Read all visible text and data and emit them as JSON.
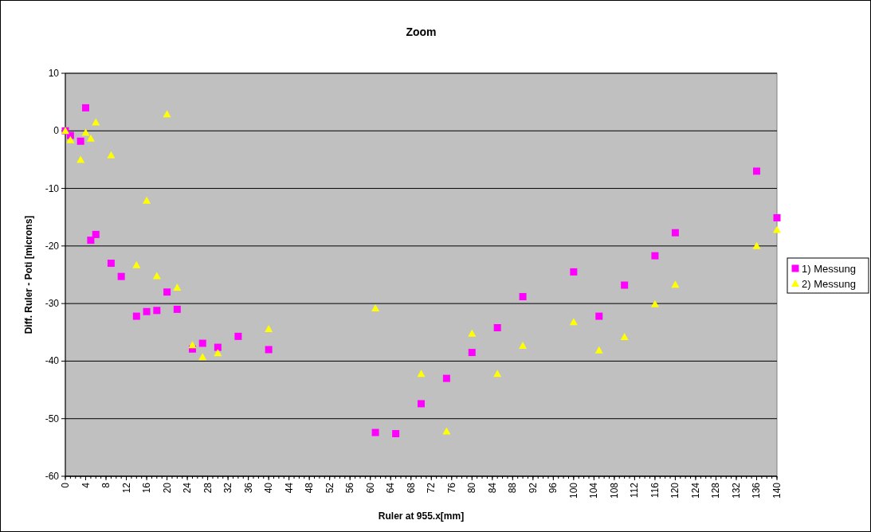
{
  "chart_data": {
    "type": "scatter",
    "title": "Zoom",
    "xlabel": "Ruler at 955.x[mm]",
    "ylabel": "Diff. Ruler - Poti [microns]",
    "xlim": [
      0,
      140
    ],
    "xticks": [
      0,
      4,
      8,
      12,
      16,
      20,
      24,
      28,
      32,
      36,
      40,
      44,
      48,
      52,
      56,
      60,
      64,
      68,
      72,
      76,
      80,
      84,
      88,
      92,
      96,
      100,
      104,
      108,
      112,
      116,
      120,
      124,
      128,
      132,
      136,
      140
    ],
    "ylim": [
      -60,
      10
    ],
    "yticks": [
      -60,
      -50,
      -40,
      -30,
      -20,
      -10,
      0,
      10
    ],
    "grid": "y",
    "legend": "right",
    "series": [
      {
        "name": "1) Messung",
        "color": "#ff00ff",
        "marker": "square",
        "x": [
          0,
          1,
          3,
          4,
          5,
          6,
          9,
          11,
          14,
          16,
          18,
          20,
          22,
          25,
          27,
          30,
          34,
          40,
          61,
          65,
          70,
          75,
          80,
          85,
          90,
          100,
          105,
          110,
          116,
          120,
          136,
          140
        ],
        "values": [
          0,
          -0.8,
          -1.8,
          4,
          -19,
          -18,
          -23,
          -25.3,
          -32.2,
          -31.4,
          -31.2,
          -28,
          -31,
          -37.9,
          -36.9,
          -37.6,
          -35.7,
          -38,
          -52.4,
          -52.6,
          -47.4,
          -43,
          -38.5,
          -34.2,
          -28.8,
          -24.5,
          -32.2,
          -26.8,
          -21.7,
          -17.7,
          -7,
          -15.1
        ]
      },
      {
        "name": "2) Messung",
        "color": "#ffff00",
        "marker": "triangle",
        "x": [
          0,
          1,
          3,
          4,
          5,
          6,
          9,
          14,
          16,
          18,
          20,
          22,
          25,
          27,
          30,
          40,
          61,
          70,
          75,
          80,
          85,
          90,
          100,
          105,
          110,
          116,
          120,
          136,
          140
        ],
        "values": [
          0,
          -1.6,
          -5,
          -0.3,
          -1.3,
          1.5,
          -4.2,
          -23.3,
          -12.1,
          -25.2,
          2.9,
          -27.2,
          -37.2,
          -39.3,
          -38.6,
          -34.4,
          -30.8,
          -42.2,
          -52.2,
          -35.2,
          -42.2,
          -37.3,
          -33.2,
          -38.1,
          -35.8,
          -30.1,
          -26.7,
          -20,
          -17.2
        ]
      }
    ]
  }
}
